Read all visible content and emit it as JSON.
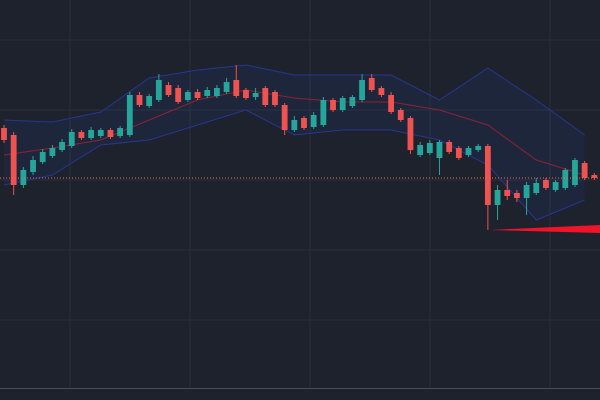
{
  "chart_data": {
    "type": "candlestick",
    "ylim": [
      0,
      400
    ],
    "up_color": "#26a69a",
    "down_color": "#ef5350",
    "open": [
      272,
      265,
      215,
      228,
      238,
      244,
      250,
      254,
      268,
      262,
      264,
      270,
      264,
      265,
      305,
      294,
      300,
      315,
      312,
      300,
      308,
      304,
      304,
      308,
      320,
      310,
      303,
      312,
      308,
      295,
      270,
      282,
      273,
      275,
      300,
      290,
      294,
      300,
      322,
      312,
      305,
      290,
      282,
      245,
      247,
      242,
      258,
      252,
      245,
      250,
      254,
      195,
      210,
      207,
      202,
      207,
      220,
      210,
      212,
      215,
      237,
      225
    ],
    "high": [
      275,
      268,
      233,
      244,
      251,
      255,
      261,
      271,
      270,
      273,
      272,
      272,
      274,
      308,
      308,
      306,
      326,
      318,
      315,
      310,
      311,
      313,
      315,
      322,
      335,
      312,
      312,
      314,
      310,
      297,
      284,
      284,
      288,
      303,
      302,
      304,
      305,
      326,
      326,
      314,
      308,
      292,
      284,
      258,
      260,
      260,
      260,
      254,
      254,
      256,
      256,
      215,
      220,
      210,
      218,
      222,
      222,
      220,
      232,
      242,
      239,
      227
    ],
    "low": [
      257,
      205,
      212,
      225,
      236,
      242,
      248,
      252,
      260,
      260,
      262,
      261,
      262,
      263,
      293,
      292,
      298,
      303,
      296,
      298,
      300,
      302,
      302,
      306,
      302,
      300,
      300,
      293,
      293,
      265,
      268,
      270,
      271,
      273,
      288,
      288,
      292,
      298,
      308,
      303,
      286,
      278,
      246,
      243,
      245,
      225,
      246,
      240,
      243,
      248,
      170,
      180,
      200,
      198,
      185,
      205,
      210,
      208,
      210,
      213,
      220,
      220
    ],
    "close": [
      260,
      215,
      230,
      240,
      248,
      252,
      258,
      268,
      262,
      270,
      270,
      263,
      272,
      305,
      295,
      304,
      320,
      305,
      298,
      308,
      302,
      310,
      312,
      318,
      304,
      302,
      307,
      295,
      295,
      270,
      280,
      272,
      285,
      300,
      290,
      302,
      303,
      320,
      310,
      305,
      288,
      280,
      250,
      255,
      257,
      258,
      248,
      242,
      252,
      254,
      195,
      210,
      204,
      202,
      215,
      217,
      212,
      218,
      230,
      240,
      222,
      222
    ],
    "bands": {
      "x": [
        0,
        5,
        10,
        15,
        20,
        25,
        30,
        35,
        40,
        45,
        50,
        55,
        60
      ],
      "upper": [
        280,
        278,
        288,
        322,
        330,
        335,
        325,
        325,
        325,
        300,
        332,
        300,
        265
      ],
      "middle": [
        245,
        252,
        260,
        280,
        300,
        310,
        302,
        298,
        298,
        290,
        275,
        240,
        225
      ],
      "lower": [
        215,
        225,
        255,
        260,
        275,
        290,
        265,
        270,
        270,
        260,
        235,
        180,
        200
      ],
      "upper_color": "#283593",
      "middle_color": "#8e2236",
      "fill": "rgba(41,98,255,0.07)"
    },
    "price_line": 222,
    "price_line_color": "#ef6c50"
  }
}
